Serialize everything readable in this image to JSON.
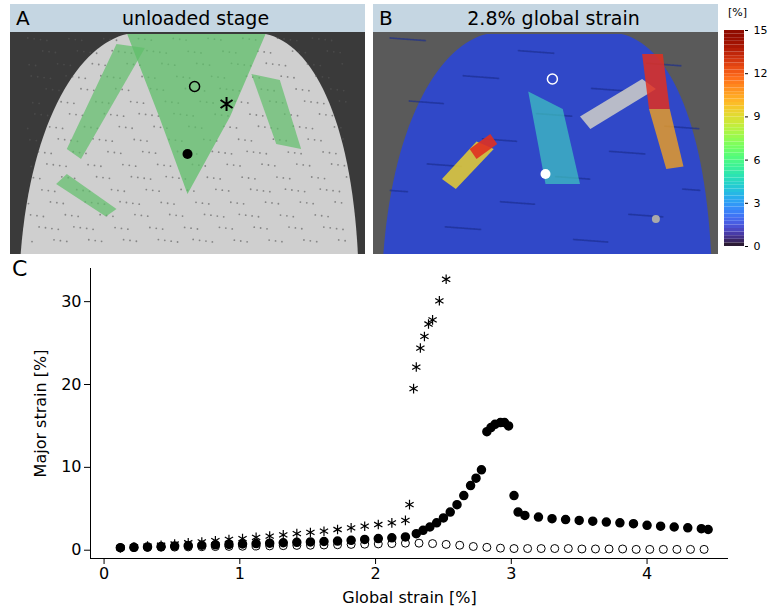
{
  "panels": [
    {
      "letter": "A",
      "title": "unloaded stage"
    },
    {
      "letter": "B",
      "title": "2.8% global strain",
      "colorbar": {
        "label": "[%]",
        "range": [
          0,
          15
        ],
        "ticks": [
          0,
          3,
          6,
          9,
          12,
          15
        ]
      }
    }
  ],
  "chart_data": {
    "type": "scatter",
    "panel_letter": "C",
    "x_label": "Global strain [%]",
    "y_label": "Major strain [%]",
    "xlim": [
      -0.1,
      4.6
    ],
    "xticks": [
      0,
      1,
      2,
      3,
      4
    ],
    "ylim": [
      -1,
      34
    ],
    "yticks": [
      0,
      10,
      20,
      30
    ],
    "grid": false,
    "series": [
      {
        "marker": "asterisk",
        "color": "#000000",
        "x": [
          0.12,
          0.22,
          0.32,
          0.42,
          0.52,
          0.62,
          0.72,
          0.82,
          0.92,
          1.02,
          1.12,
          1.22,
          1.32,
          1.42,
          1.52,
          1.62,
          1.72,
          1.82,
          1.92,
          2.02,
          2.12,
          2.22,
          2.25,
          2.28,
          2.3,
          2.33,
          2.36,
          2.39,
          2.42,
          2.47,
          2.52
        ],
        "values": [
          0.3,
          0.4,
          0.5,
          0.6,
          0.75,
          0.9,
          1.0,
          1.15,
          1.3,
          1.4,
          1.55,
          1.7,
          1.85,
          2.0,
          2.15,
          2.3,
          2.5,
          2.7,
          2.9,
          3.1,
          3.3,
          3.6,
          5.5,
          19.5,
          22.1,
          24.4,
          25.8,
          27.3,
          27.8,
          30.1,
          32.7
        ]
      },
      {
        "marker": "circle",
        "color": "#000000",
        "x": [
          0.12,
          0.22,
          0.32,
          0.42,
          0.52,
          0.62,
          0.72,
          0.82,
          0.92,
          1.02,
          1.12,
          1.22,
          1.32,
          1.42,
          1.52,
          1.62,
          1.72,
          1.82,
          1.92,
          2.02,
          2.12,
          2.22,
          2.3,
          2.35,
          2.4,
          2.45,
          2.5,
          2.55,
          2.6,
          2.65,
          2.7,
          2.74,
          2.78,
          2.82,
          2.85,
          2.88,
          2.92,
          2.95,
          2.98,
          3.02,
          3.05,
          3.1,
          3.2,
          3.3,
          3.4,
          3.5,
          3.6,
          3.7,
          3.8,
          3.9,
          4.0,
          4.1,
          4.2,
          4.3,
          4.4,
          4.45
        ],
        "values": [
          0.3,
          0.35,
          0.4,
          0.45,
          0.5,
          0.55,
          0.6,
          0.65,
          0.7,
          0.75,
          0.8,
          0.85,
          0.9,
          0.95,
          1.0,
          1.05,
          1.1,
          1.2,
          1.3,
          1.4,
          1.5,
          1.6,
          2.0,
          2.4,
          2.8,
          3.3,
          3.9,
          4.6,
          5.5,
          6.6,
          7.8,
          8.7,
          9.7,
          14.3,
          14.8,
          15.2,
          15.4,
          15.4,
          15.0,
          6.6,
          4.6,
          4.2,
          4.0,
          3.8,
          3.7,
          3.6,
          3.5,
          3.4,
          3.3,
          3.2,
          3.0,
          2.9,
          2.8,
          2.7,
          2.6,
          2.5
        ]
      },
      {
        "marker": "circle-open",
        "color": "#000000",
        "x": [
          0.12,
          0.22,
          0.32,
          0.42,
          0.52,
          0.62,
          0.72,
          0.82,
          0.92,
          1.02,
          1.12,
          1.22,
          1.32,
          1.42,
          1.52,
          1.62,
          1.72,
          1.82,
          1.92,
          2.02,
          2.12,
          2.22,
          2.32,
          2.42,
          2.52,
          2.62,
          2.72,
          2.82,
          2.92,
          3.02,
          3.12,
          3.22,
          3.32,
          3.42,
          3.52,
          3.62,
          3.72,
          3.82,
          3.92,
          4.02,
          4.12,
          4.22,
          4.32,
          4.42
        ],
        "values": [
          0.3,
          0.32,
          0.34,
          0.36,
          0.38,
          0.4,
          0.42,
          0.44,
          0.46,
          0.48,
          0.5,
          0.52,
          0.55,
          0.58,
          0.6,
          0.63,
          0.66,
          0.7,
          0.73,
          0.76,
          0.8,
          0.85,
          0.85,
          0.8,
          0.7,
          0.6,
          0.45,
          0.35,
          0.25,
          0.2,
          0.2,
          0.2,
          0.2,
          0.2,
          0.15,
          0.15,
          0.15,
          0.15,
          0.1,
          0.1,
          0.1,
          0.1,
          0.1,
          0.1
        ]
      }
    ]
  }
}
